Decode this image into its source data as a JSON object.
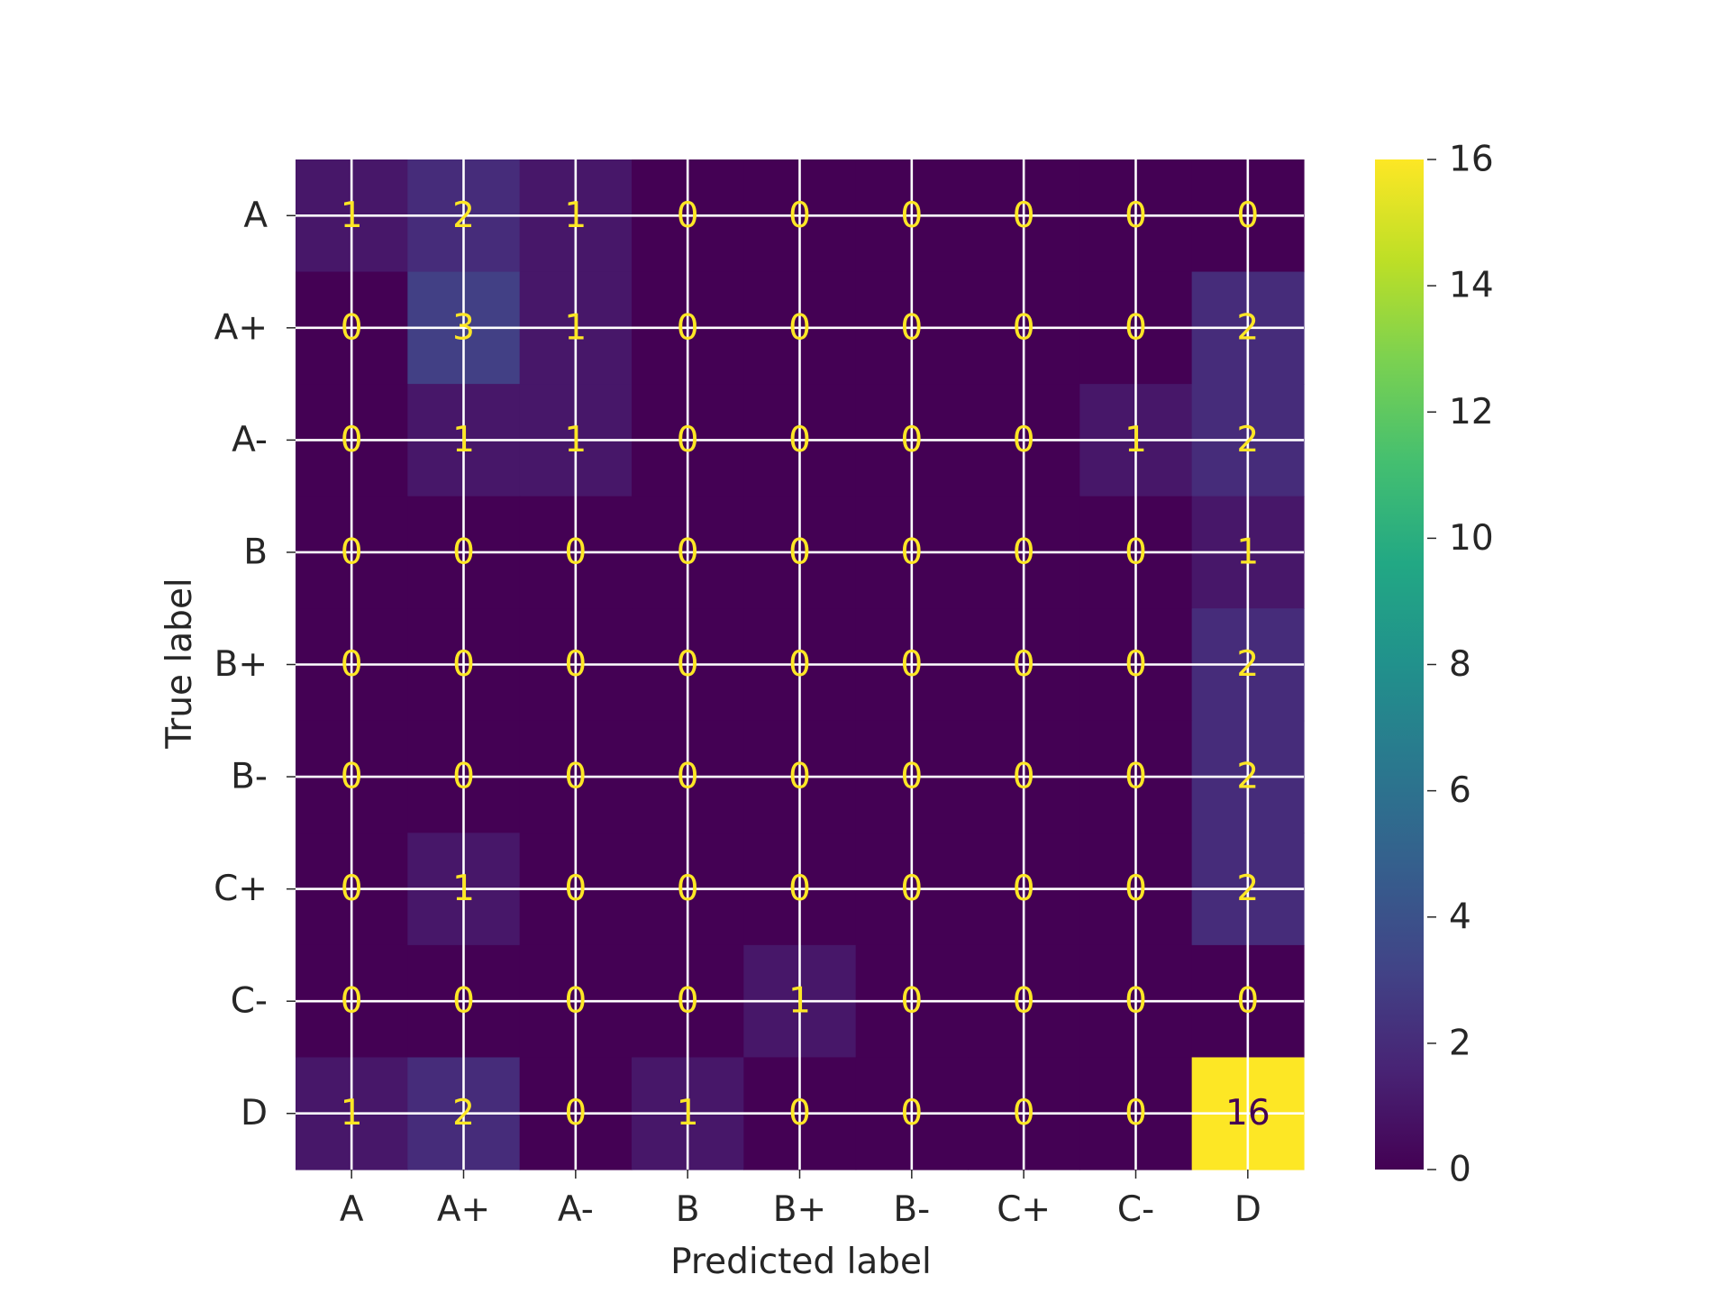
{
  "chart_data": {
    "type": "heatmap",
    "title": "",
    "xlabel": "Predicted label",
    "ylabel": "True label",
    "x_categories": [
      "A",
      "A+",
      "A-",
      "B",
      "B+",
      "B-",
      "C+",
      "C-",
      "D"
    ],
    "y_categories": [
      "A",
      "A+",
      "A-",
      "B",
      "B+",
      "B-",
      "C+",
      "C-",
      "D"
    ],
    "matrix": [
      [
        1,
        2,
        1,
        0,
        0,
        0,
        0,
        0,
        0
      ],
      [
        0,
        3,
        1,
        0,
        0,
        0,
        0,
        0,
        2
      ],
      [
        0,
        1,
        1,
        0,
        0,
        0,
        0,
        1,
        2
      ],
      [
        0,
        0,
        0,
        0,
        0,
        0,
        0,
        0,
        1
      ],
      [
        0,
        0,
        0,
        0,
        0,
        0,
        0,
        0,
        2
      ],
      [
        0,
        0,
        0,
        0,
        0,
        0,
        0,
        0,
        2
      ],
      [
        0,
        1,
        0,
        0,
        0,
        0,
        0,
        0,
        2
      ],
      [
        0,
        0,
        0,
        0,
        1,
        0,
        0,
        0,
        0
      ],
      [
        1,
        2,
        0,
        1,
        0,
        0,
        0,
        0,
        16
      ]
    ],
    "colormap": "viridis",
    "colorbar": {
      "min": 0,
      "max": 16,
      "ticks": [
        0,
        2,
        4,
        6,
        8,
        10,
        12,
        14,
        16
      ]
    },
    "grid": true,
    "colors": {
      "grid": "#ffffff",
      "text_on_dark": "#fde725",
      "text_on_light": "#440154",
      "tick_text": "#262626"
    }
  }
}
